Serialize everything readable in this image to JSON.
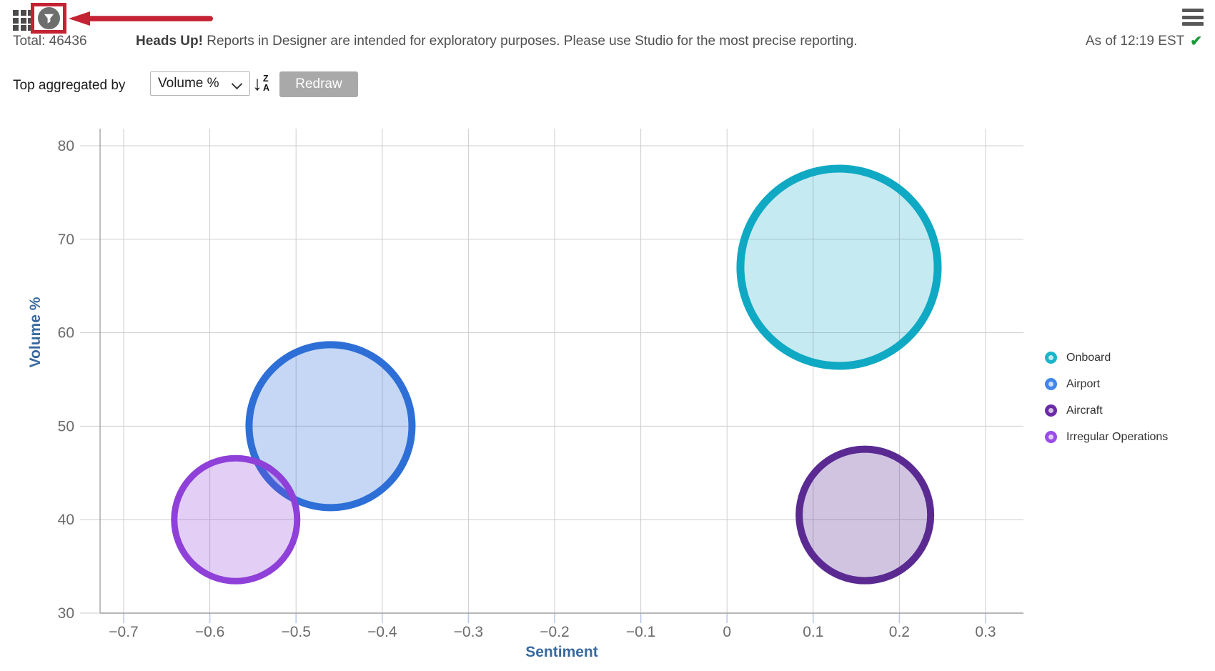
{
  "header": {
    "total": "Total: 46436",
    "notice_bold": "Heads Up!",
    "notice_rest": " Reports in Designer are intended for exploratory purposes. Please use Studio for the most precise reporting.",
    "as_of": "As of 12:19 EST",
    "check_glyph": "✔",
    "icons": {
      "grid": "grid-menu-icon",
      "filter": "filter-icon",
      "menu": "hamburger-menu-icon"
    },
    "annotation_color": "#c32333"
  },
  "toolbar": {
    "label": "Top aggregated by",
    "dropdown_value": "Volume %",
    "sort_icon": "sort-descending-za-icon",
    "sort_arrow": "↓",
    "sort_top": "Z",
    "sort_bottom": "A",
    "redraw_label": "Redraw"
  },
  "chart_data": {
    "type": "bubble",
    "xlabel": "Sentiment",
    "ylabel": "Volume %",
    "xlim": [
      -0.73,
      0.34
    ],
    "ylim": [
      30,
      81.8
    ],
    "grid": true,
    "legend_position": "right",
    "x_ticks": [
      {
        "v": -0.7,
        "label": "−0.7"
      },
      {
        "v": -0.6,
        "label": "−0.6"
      },
      {
        "v": -0.5,
        "label": "−0.5"
      },
      {
        "v": -0.4,
        "label": "−0.4"
      },
      {
        "v": -0.3,
        "label": "−0.3"
      },
      {
        "v": -0.2,
        "label": "−0.2"
      },
      {
        "v": -0.1,
        "label": "−0.1"
      },
      {
        "v": 0,
        "label": "0"
      },
      {
        "v": 0.1,
        "label": "0.1"
      },
      {
        "v": 0.2,
        "label": "0.2"
      },
      {
        "v": 0.3,
        "label": "0.3"
      }
    ],
    "y_ticks": [
      {
        "v": 30,
        "label": "30"
      },
      {
        "v": 40,
        "label": "40"
      },
      {
        "v": 50,
        "label": "50"
      },
      {
        "v": 60,
        "label": "60"
      },
      {
        "v": 70,
        "label": "70"
      },
      {
        "v": 80,
        "label": "80"
      }
    ],
    "series": [
      {
        "name": "Onboard",
        "x": 0.13,
        "y": 67,
        "radius_px": 138,
        "stroke": "#0fa9c4",
        "fill": "rgba(15,169,196,0.24)",
        "stroke_width": 11,
        "legend_color": "#19b6cb"
      },
      {
        "name": "Airport",
        "x": -0.46,
        "y": 50,
        "radius_px": 114,
        "stroke": "#2d6fd6",
        "fill": "rgba(45,111,214,0.28)",
        "stroke_width": 10,
        "legend_color": "#4186ec"
      },
      {
        "name": "Aircraft",
        "x": 0.16,
        "y": 40.5,
        "radius_px": 92,
        "stroke": "#5a2a92",
        "fill": "rgba(90,42,146,0.28)",
        "stroke_width": 10,
        "legend_color": "#6b2ba6"
      },
      {
        "name": "Irregular Operations",
        "x": -0.57,
        "y": 40,
        "radius_px": 86,
        "stroke": "#8f40d9",
        "fill": "rgba(143,64,217,0.25)",
        "stroke_width": 9,
        "legend_color": "#9b4ce8"
      }
    ],
    "colors": {
      "gridline": "#cdcdcd",
      "axis_line": "#9f9f9f",
      "x_tick_stub": "#b9c7e6",
      "tick_label": "#6b6b6b",
      "axis_title": "#38699f"
    }
  }
}
